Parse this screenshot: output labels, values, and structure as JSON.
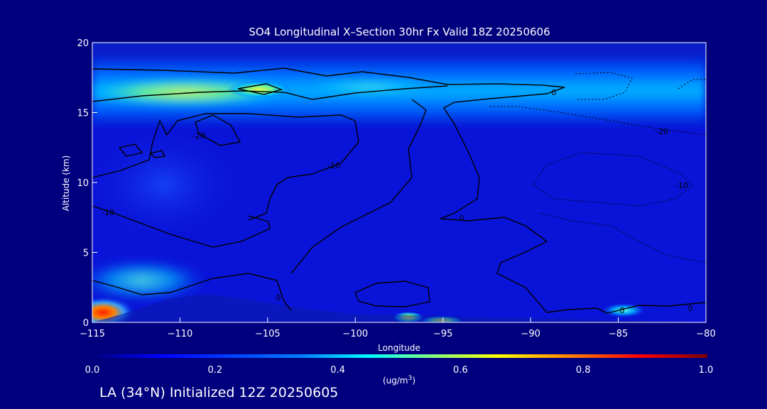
{
  "chart_data": {
    "type": "heatmap",
    "title": "SO4 Longitudinal X–Section 30hr  Fx Valid 18Z 20250606",
    "xlabel": "Longitude",
    "ylabel": "Altitude (km)",
    "xlim": [
      -115,
      -80
    ],
    "ylim": [
      0,
      20
    ],
    "x_ticks": [
      "-115",
      "-110",
      "-105",
      "-100",
      "-95",
      "-90",
      "-85",
      "-80"
    ],
    "x_tick_values": [
      -115,
      -110,
      -105,
      -100,
      -95,
      -90,
      -85,
      -80
    ],
    "y_ticks": [
      "0",
      "5",
      "10",
      "15",
      "20"
    ],
    "y_tick_values": [
      0,
      5,
      10,
      15,
      20
    ],
    "colorbar": {
      "min": 0.0,
      "max": 1.0,
      "ticks": [
        "0.0",
        "0.2",
        "0.4",
        "0.6",
        "0.8",
        "1.0"
      ],
      "tick_values": [
        0.0,
        0.2,
        0.4,
        0.6,
        0.8,
        1.0
      ],
      "unit_prefix": "(ug/m",
      "unit_exp": "3",
      "unit_suffix": ")",
      "colors": [
        "#00007f",
        "#0000ff",
        "#0080ff",
        "#00ffff",
        "#80ff80",
        "#ffff00",
        "#ff8000",
        "#ff0000",
        "#7f0000"
      ]
    },
    "highlights": [
      {
        "label": "upper layer",
        "lon_range": [
          -115,
          -80
        ],
        "alt": 16.5,
        "value": 0.35
      },
      {
        "label": "upper layer peak",
        "lon_range": [
          -115,
          -104
        ],
        "alt": 16.3,
        "value": 0.55
      },
      {
        "label": "near-surface source",
        "lon": -114.8,
        "alt": 0.5,
        "value": 0.9
      },
      {
        "label": "surface patch",
        "lon": -96.5,
        "alt": 0.3,
        "value": 0.6
      },
      {
        "label": "surface patch",
        "lon": -94.5,
        "alt": 0.15,
        "value": 0.62
      },
      {
        "label": "surface patch",
        "lon": -85,
        "alt": 0.6,
        "value": 0.55
      }
    ],
    "contour_labels": [
      "-10",
      "-20",
      "-10",
      "0",
      "0",
      "0",
      "-20",
      "-10",
      "0",
      "0"
    ],
    "grid": false
  },
  "footer": "LA (34°N) Initialized 12Z 20250605",
  "colors": {
    "background": "#00007f",
    "text": "#ffffff",
    "contour": "#000000"
  }
}
